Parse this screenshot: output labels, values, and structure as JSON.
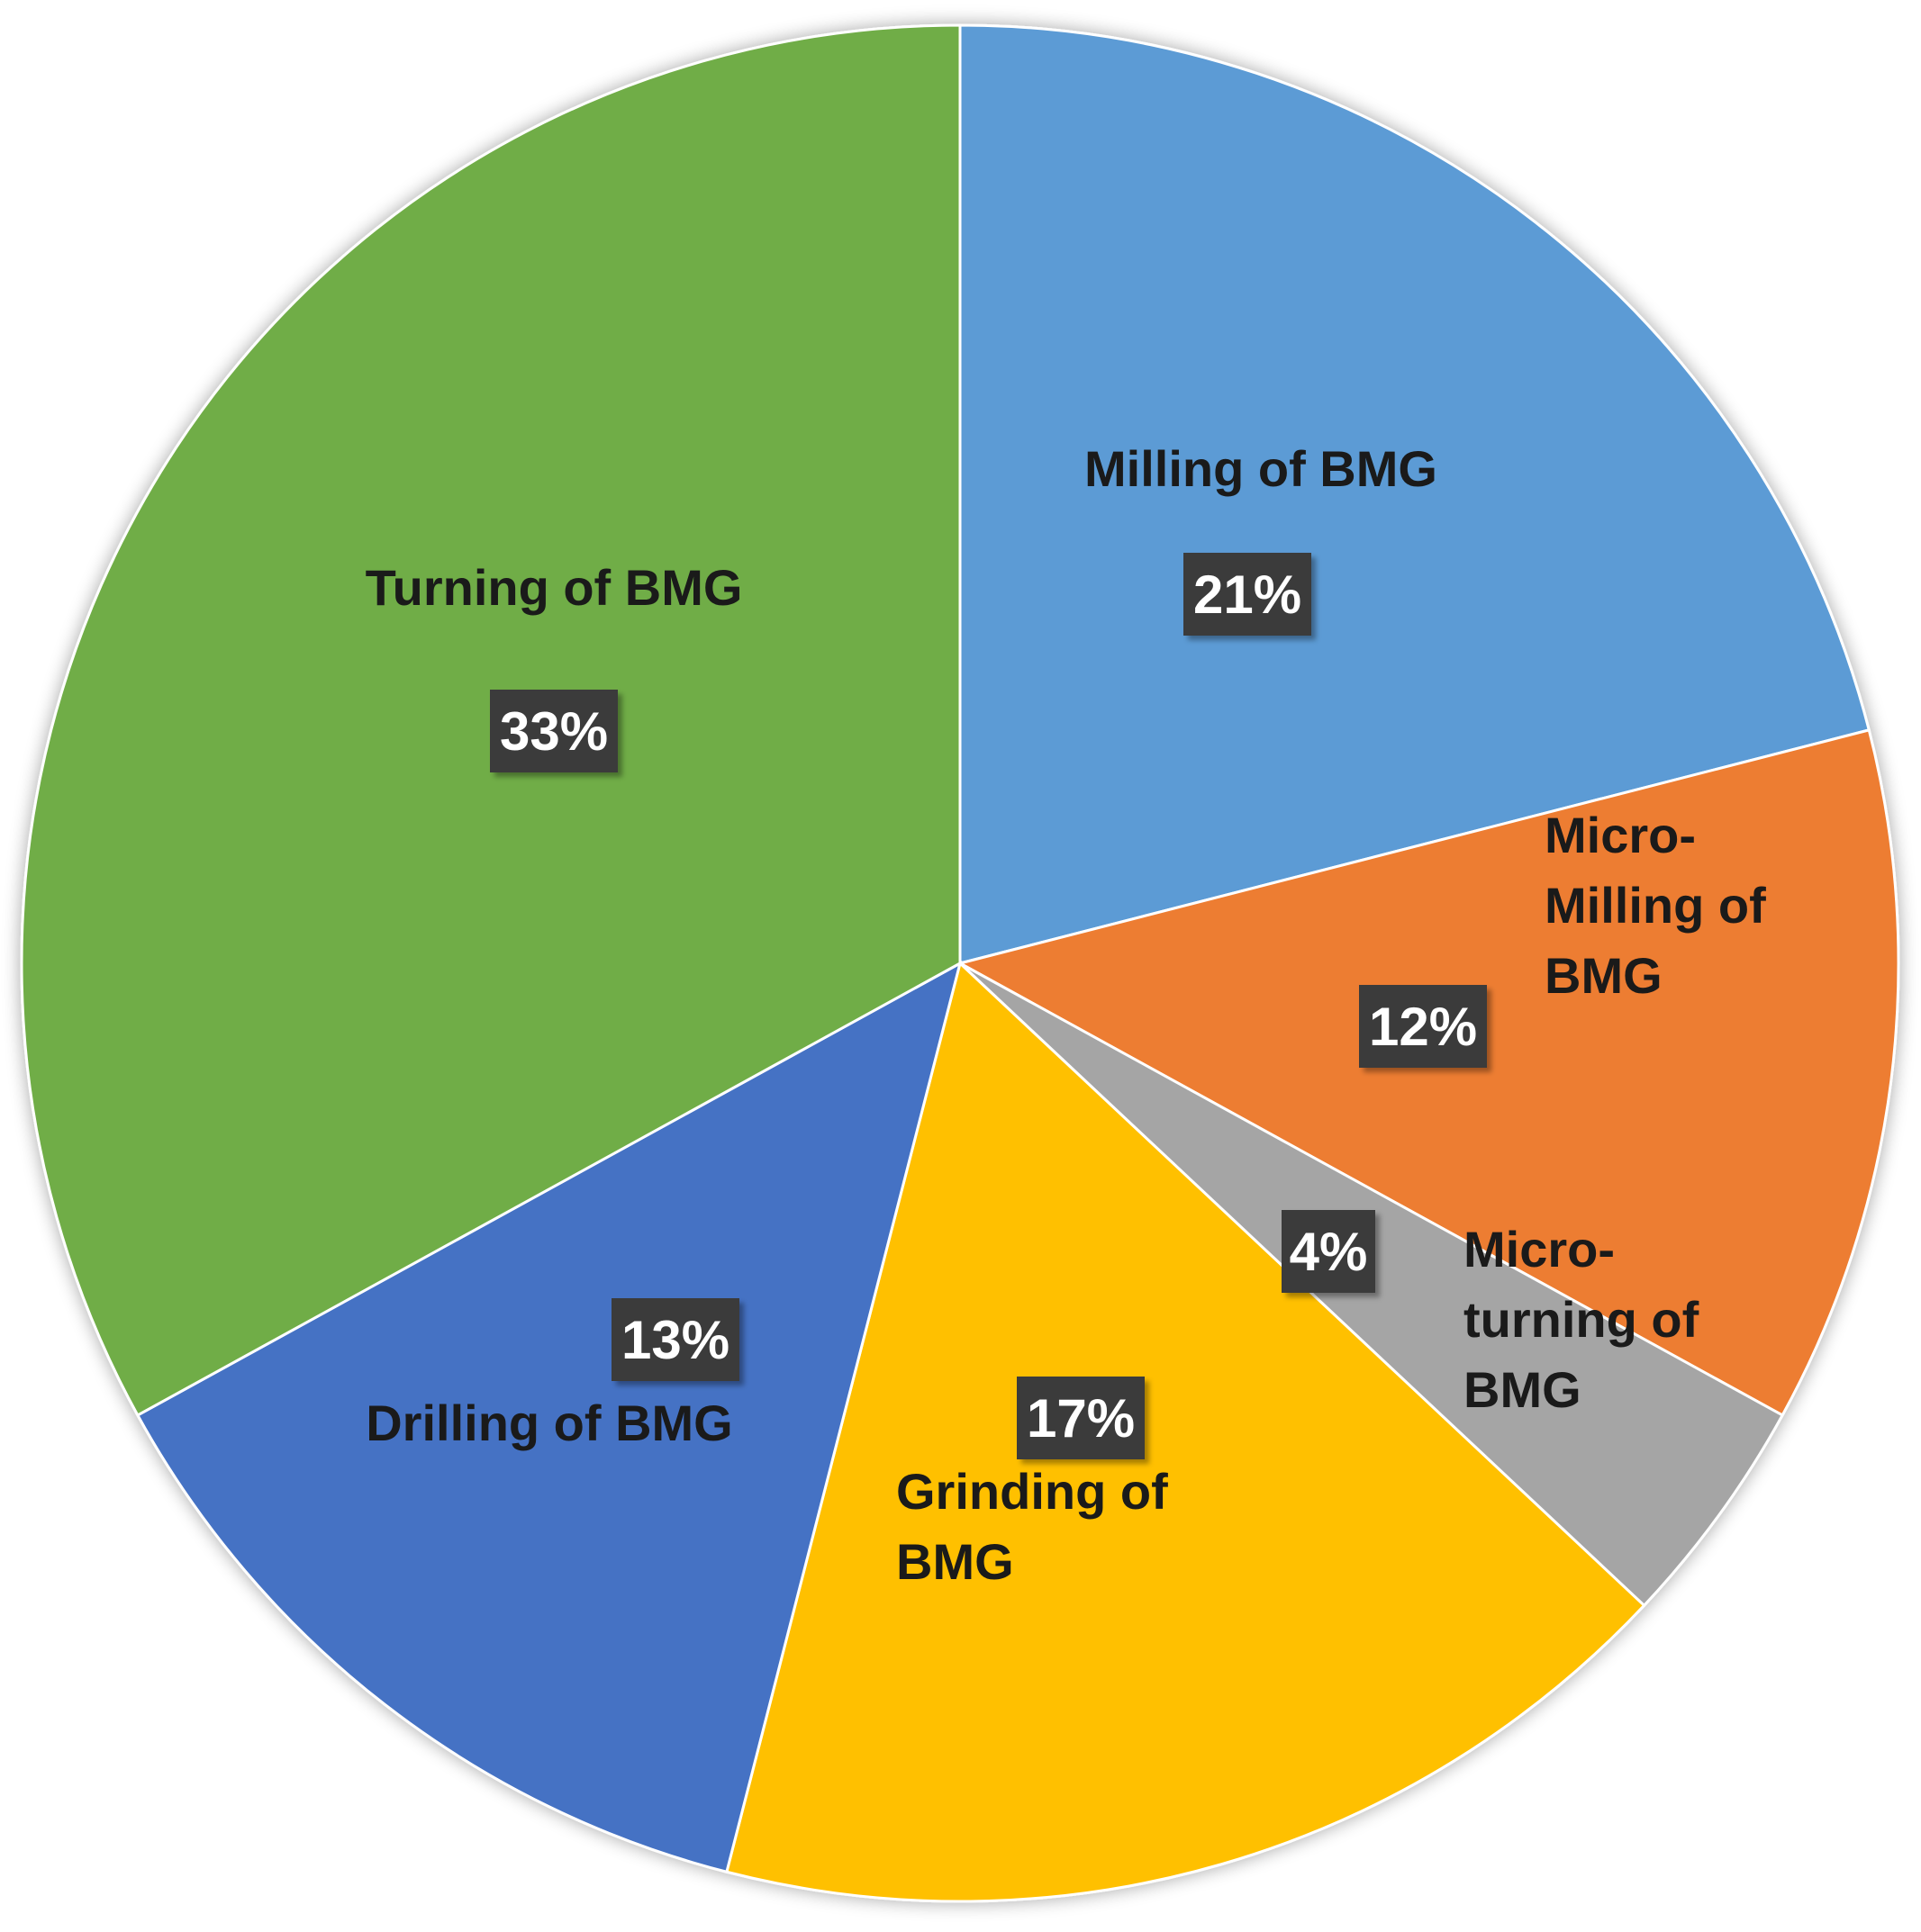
{
  "chart_data": {
    "type": "pie",
    "title": "",
    "start_angle_deg": 0,
    "direction": "clockwise",
    "slices": [
      {
        "label": "Milling of BMG",
        "value": 21,
        "display": "21%",
        "color": "#5B9BD5"
      },
      {
        "label": "Micro-Milling of BMG",
        "label_lines": [
          "Micro-",
          "Milling of",
          "BMG"
        ],
        "value": 12,
        "display": "12%",
        "color": "#ED7D31"
      },
      {
        "label": "Micro-turning of BMG",
        "label_lines": [
          "Micro-",
          "turning of",
          "BMG"
        ],
        "value": 4,
        "display": "4%",
        "color": "#A5A5A5"
      },
      {
        "label": "Grinding of BMG",
        "label_lines": [
          "Grinding of",
          "BMG"
        ],
        "value": 17,
        "display": "17%",
        "color": "#FFC000"
      },
      {
        "label": "Drilling of BMG",
        "value": 13,
        "display": "13%",
        "color": "#4472C4"
      },
      {
        "label": "Turning of BMG",
        "value": 33,
        "display": "33%",
        "color": "#70AD47"
      }
    ]
  }
}
